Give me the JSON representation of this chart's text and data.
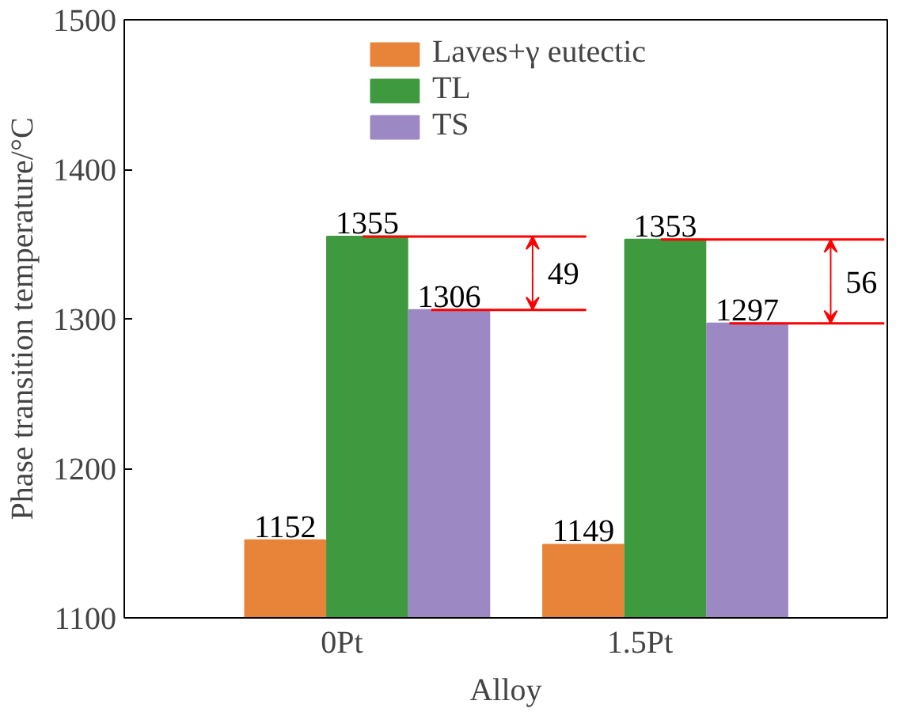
{
  "chart_data": {
    "type": "bar",
    "xlabel": "Alloy",
    "ylabel": "Phase transition temperature/°C",
    "categories": [
      "0Pt",
      "1.5Pt"
    ],
    "series": [
      {
        "name": "Laves+γ eutectic",
        "color": "#e8843a",
        "values": [
          1152,
          1149
        ]
      },
      {
        "name": "TL",
        "color": "#3f9a3f",
        "values": [
          1355,
          1353
        ]
      },
      {
        "name": "TS",
        "color": "#9c88c2",
        "values": [
          1306,
          1297
        ]
      }
    ],
    "ylim": [
      1100,
      1500
    ],
    "yticks": [
      1100,
      1200,
      1300,
      1400,
      1500
    ],
    "data_labels": true,
    "legend": "top",
    "grid": false,
    "annotations": [
      "49",
      "56"
    ],
    "ref_lines": [
      {
        "axis": "y",
        "value": 1355,
        "color": "#ff0000"
      },
      {
        "axis": "y",
        "value": 1306,
        "color": "#ff0000"
      },
      {
        "axis": "y",
        "value": 1353,
        "color": "#ff0000"
      },
      {
        "axis": "y",
        "value": 1297,
        "color": "#ff0000"
      }
    ]
  }
}
